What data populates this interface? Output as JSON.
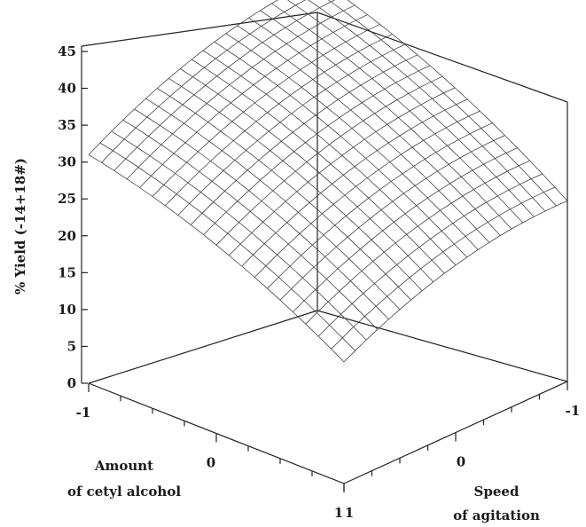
{
  "chart_data": {
    "type": "surface3d",
    "title": "",
    "zlabel": "% Yield (-14+18#)",
    "x_axis": {
      "label_lines": [
        "Amount",
        "of cetyl alcohol"
      ],
      "ticks": [
        "-1",
        "0",
        "1"
      ],
      "range": [
        -1,
        1
      ]
    },
    "y_axis": {
      "label_lines": [
        "Speed",
        "of agitation"
      ],
      "ticks": [
        "-1",
        "0",
        "1"
      ],
      "range": [
        -1,
        1
      ]
    },
    "z_axis": {
      "ticks": [
        "0",
        "5",
        "10",
        "15",
        "20",
        "25",
        "30",
        "35",
        "40",
        "45"
      ],
      "range": [
        0,
        45
      ]
    },
    "corner_yields": {
      "x_minus1_y_minus1": 45,
      "x_minus1_y_plus1": 31,
      "x_plus1_y_minus1": 24.5,
      "x_plus1_y_plus1": 16.5
    },
    "grid_resolution": 20,
    "grid": true,
    "mesh_color": "#3a3a3a"
  }
}
